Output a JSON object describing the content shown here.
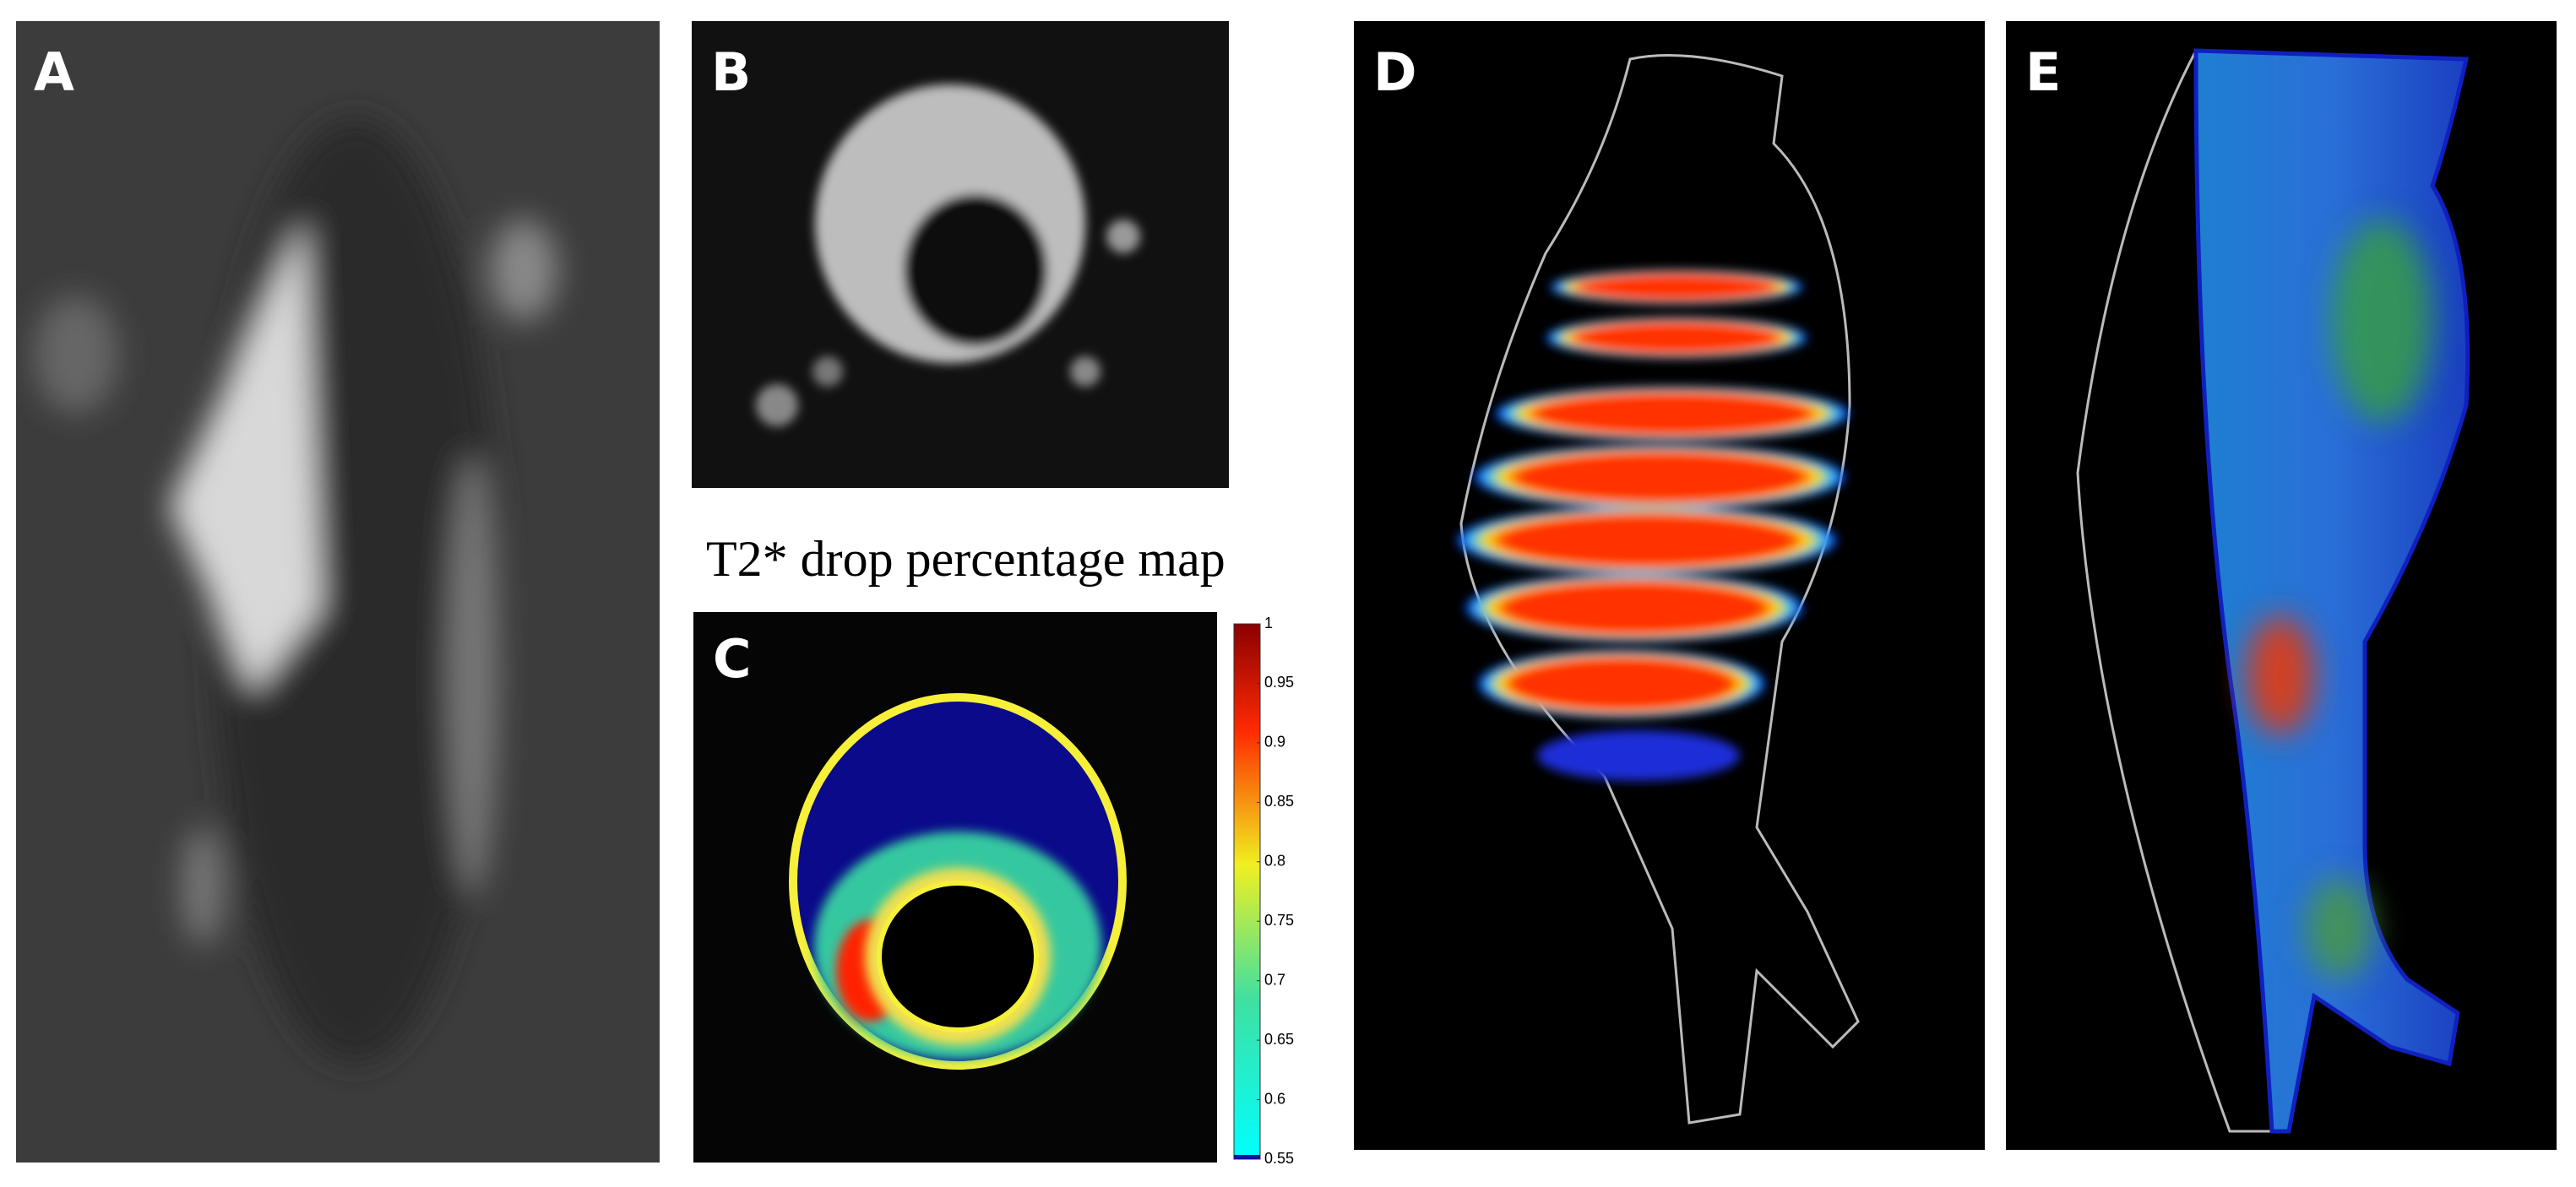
{
  "panels": {
    "a": {
      "label": "A"
    },
    "b": {
      "label": "B"
    },
    "c": {
      "label": "C",
      "title": "T2* drop percentage map"
    },
    "d": {
      "label": "D"
    },
    "e": {
      "label": "E"
    }
  },
  "colorbar": {
    "lim": [
      0.55,
      1
    ],
    "ticks": [
      0.55,
      0.6,
      0.65,
      0.7,
      0.75,
      0.8,
      0.85,
      0.9,
      0.95,
      1
    ]
  }
}
